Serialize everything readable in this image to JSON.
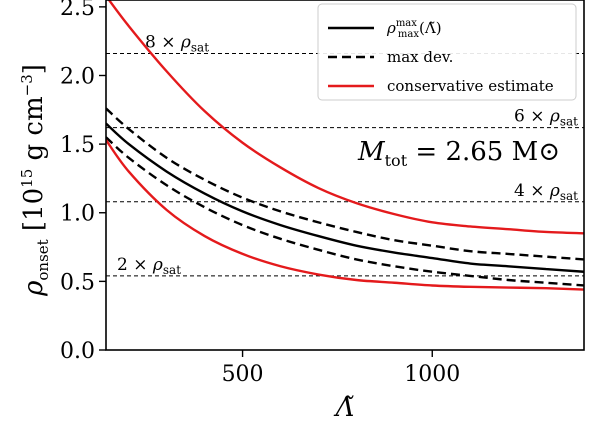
{
  "chart_data": {
    "type": "line",
    "xlabel": "Λ̃",
    "ylabel": "ρ_onset [10^15 g cm^-3]",
    "xlim": [
      140,
      1400
    ],
    "ylim": [
      0,
      2.55
    ],
    "x_ticks": [
      500,
      1000
    ],
    "x_tick_labels": [
      "500",
      "1000"
    ],
    "y_ticks": [
      0.0,
      0.5,
      1.0,
      1.5,
      2.0,
      2.5
    ],
    "y_tick_labels": [
      "0.0",
      "0.5",
      "1.0",
      "1.5",
      "2.0",
      "2.5"
    ],
    "grid": false,
    "legend_position": "top-right",
    "reference_lines": [
      {
        "y": 0.54,
        "label": "2 × ρsat",
        "label_side": "left"
      },
      {
        "y": 1.08,
        "label": "4 × ρsat",
        "label_side": "right"
      },
      {
        "y": 1.62,
        "label": "6 × ρsat",
        "label_side": "right"
      },
      {
        "y": 2.16,
        "label": "8 × ρsat",
        "label_side": "left"
      }
    ],
    "annotation": "Mtot =  2.65 M⊙",
    "series": [
      {
        "name": "ρmaxmax(Λ̃)",
        "color": "#000000",
        "style": "solid",
        "x": [
          140,
          200,
          300,
          400,
          500,
          600,
          700,
          800,
          900,
          1000,
          1100,
          1200,
          1300,
          1400
        ],
        "y": [
          1.65,
          1.5,
          1.3,
          1.14,
          1.01,
          0.91,
          0.83,
          0.76,
          0.71,
          0.67,
          0.63,
          0.61,
          0.59,
          0.57
        ]
      },
      {
        "name": "max dev.",
        "color": "#000000",
        "style": "dashed",
        "x": [
          140,
          200,
          300,
          400,
          500,
          600,
          700,
          800,
          900,
          1000,
          1100,
          1200,
          1300,
          1400
        ],
        "y": [
          1.76,
          1.61,
          1.4,
          1.24,
          1.11,
          1.01,
          0.93,
          0.86,
          0.8,
          0.76,
          0.72,
          0.7,
          0.68,
          0.66
        ]
      },
      {
        "name": "max dev. (lower)",
        "color": "#000000",
        "style": "dashed",
        "x": [
          140,
          200,
          300,
          400,
          500,
          600,
          700,
          800,
          900,
          1000,
          1100,
          1200,
          1300,
          1400
        ],
        "y": [
          1.55,
          1.4,
          1.2,
          1.04,
          0.91,
          0.81,
          0.73,
          0.66,
          0.61,
          0.57,
          0.54,
          0.51,
          0.49,
          0.47
        ]
      },
      {
        "name": "conservative estimate",
        "color": "#e41a1c",
        "style": "solid",
        "x": [
          140,
          200,
          300,
          400,
          500,
          600,
          700,
          800,
          900,
          1000,
          1100,
          1200,
          1300,
          1400
        ],
        "y": [
          2.58,
          2.36,
          2.03,
          1.74,
          1.51,
          1.33,
          1.18,
          1.07,
          0.99,
          0.93,
          0.9,
          0.88,
          0.86,
          0.85
        ]
      },
      {
        "name": "conservative estimate (lower)",
        "color": "#e41a1c",
        "style": "solid",
        "x": [
          140,
          200,
          300,
          400,
          500,
          600,
          700,
          800,
          900,
          1000,
          1100,
          1200,
          1300,
          1400
        ],
        "y": [
          1.53,
          1.3,
          1.02,
          0.83,
          0.7,
          0.61,
          0.55,
          0.51,
          0.49,
          0.47,
          0.46,
          0.455,
          0.45,
          0.44
        ]
      }
    ],
    "legend": [
      {
        "label": "ρmaxmax(Λ̃)",
        "style": "solid",
        "color": "#000000"
      },
      {
        "label": "max dev.",
        "style": "dashed",
        "color": "#000000"
      },
      {
        "label": "conservative estimate",
        "style": "solid",
        "color": "#e41a1c"
      }
    ]
  }
}
